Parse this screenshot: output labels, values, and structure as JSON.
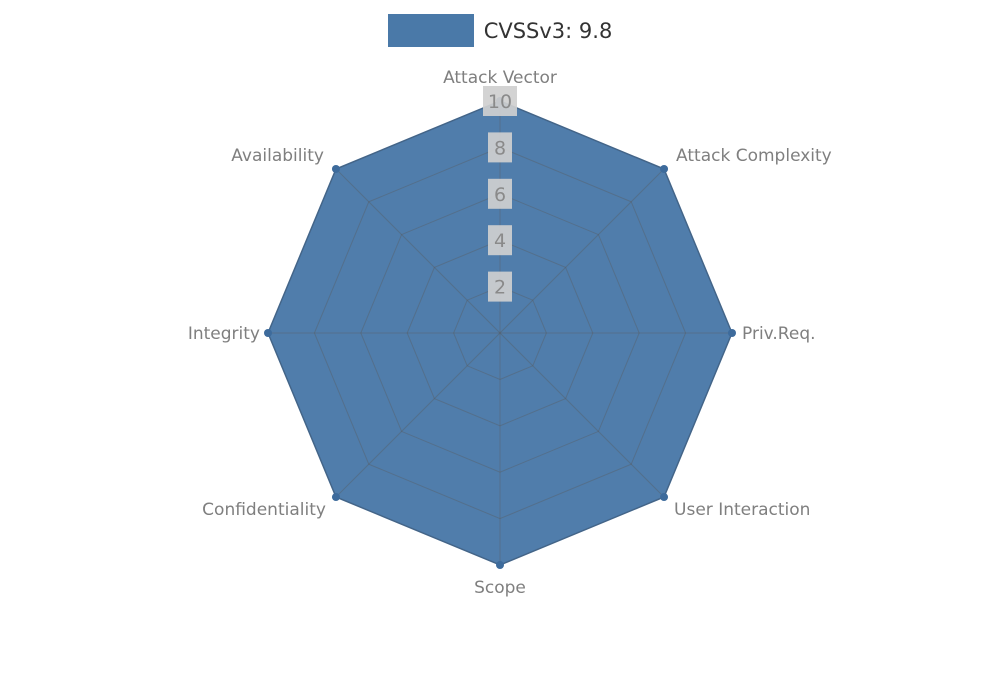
{
  "legend": {
    "label": "CVSSv3: 9.8",
    "swatch_color": "#4a79a8"
  },
  "chart_data": {
    "type": "radar",
    "categories": [
      "Attack Vector",
      "Attack Complexity",
      "Priv.Req.",
      "User Interaction",
      "Scope",
      "Confidentiality",
      "Integrity",
      "Availability"
    ],
    "series": [
      {
        "name": "CVSSv3: 9.8",
        "values": [
          10,
          10,
          10,
          10,
          10,
          10,
          10,
          10
        ],
        "color": "#4a79a8",
        "edge_color": "#4169933",
        "marker_color": "#3d6b9c"
      }
    ],
    "ticks": [
      2,
      4,
      6,
      8,
      10
    ],
    "rmax": 10,
    "grid": true,
    "legend_position": "top",
    "tick_box_color": "#cfcfcf",
    "grid_color": "#5a5a5a"
  },
  "colors": {
    "background": "#ffffff",
    "axis_label": "#7f7f7f",
    "tick_label": "#8a8a8a"
  }
}
